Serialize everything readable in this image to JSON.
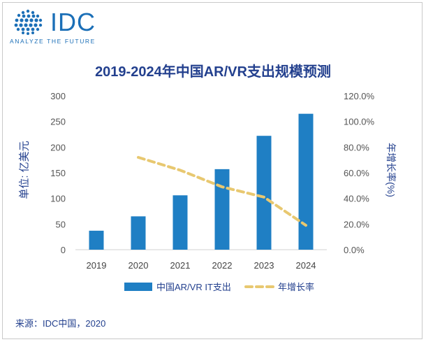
{
  "logo": {
    "brand": "IDC",
    "tagline": "ANALYZE THE FUTURE"
  },
  "chart_data": {
    "type": "bar",
    "title": "2019-2024年中国AR/VR支出规模预测",
    "categories": [
      "2019",
      "2020",
      "2021",
      "2022",
      "2023",
      "2024"
    ],
    "series": [
      {
        "name": "中国AR/VR IT支出",
        "type": "bar",
        "axis": "left",
        "color": "#1f7fc4",
        "values": [
          37,
          65,
          106,
          157,
          222,
          265
        ]
      },
      {
        "name": "年增长率",
        "type": "line",
        "axis": "right",
        "color": "#e8c870",
        "dashed": true,
        "values": [
          null,
          72.0,
          62.0,
          49.0,
          41.0,
          19.0
        ]
      }
    ],
    "ylabel": "单位: 亿美元",
    "y2label": "年增长率(%)",
    "ylim": [
      0,
      300
    ],
    "y2lim": [
      0,
      120
    ],
    "yticks": [
      "0",
      "50",
      "100",
      "150",
      "200",
      "250",
      "300"
    ],
    "y2ticks": [
      "0.0%",
      "20.0%",
      "40.0%",
      "60.0%",
      "80.0%",
      "100.0%",
      "120.0%"
    ],
    "grid": false,
    "legend_position": "bottom"
  },
  "source": "来源：IDC中国，2020"
}
